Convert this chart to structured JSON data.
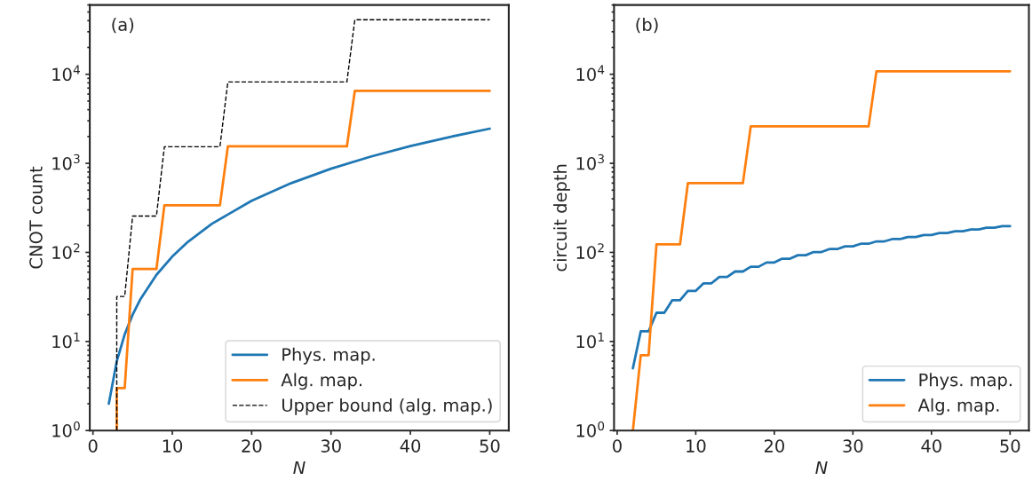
{
  "chart_data": [
    {
      "type": "line",
      "xlabel": "N",
      "ylabel": "CNOT count",
      "annotations": [
        "(a)"
      ],
      "log": "y",
      "legend": "bottom right",
      "grid": false,
      "xlim": [
        -0.4,
        52.4
      ],
      "xticks": [
        0,
        10,
        20,
        30,
        40,
        50
      ],
      "ylim": [
        1,
        60000
      ],
      "yticks": [
        {
          "value": 1,
          "label": "10$^{0}$"
        },
        {
          "value": 10,
          "label": "10$^{1}$"
        },
        {
          "value": 100,
          "label": "10$^{2}$"
        },
        {
          "value": 1000,
          "label": "10$^{3}$"
        },
        {
          "value": 10000,
          "label": "10$^{4}$"
        }
      ],
      "series": [
        {
          "name": "Phys. map.",
          "color": "#1f77b4",
          "line_style": "solid",
          "x": [
            2,
            3,
            4,
            5,
            6,
            8,
            10,
            12,
            15,
            20,
            25,
            30,
            35,
            40,
            45,
            50
          ],
          "values": [
            2,
            6,
            12,
            20,
            30,
            56,
            90,
            132,
            210,
            380,
            600,
            870,
            1190,
            1560,
            1980,
            2450
          ]
        },
        {
          "name": "Alg. map.",
          "color": "#ff7f0e",
          "line_style": "solid",
          "x": [
            3,
            3,
            4,
            5,
            8,
            9,
            16,
            17,
            32,
            33,
            50
          ],
          "values": [
            1,
            3,
            3,
            65,
            65,
            338,
            338,
            1550,
            1550,
            6500,
            6500
          ]
        },
        {
          "name": "Upper bound (alg. map.)",
          "color": "#000000",
          "line_style": "dashed",
          "x": [
            3,
            3,
            4,
            5,
            8,
            9,
            16,
            17,
            32,
            33,
            50
          ],
          "values": [
            1,
            32,
            32,
            256,
            256,
            1536,
            1536,
            8192,
            8192,
            40960,
            40960
          ]
        }
      ]
    },
    {
      "type": "line",
      "xlabel": "N",
      "ylabel": "circuit depth",
      "annotations": [
        "(b)"
      ],
      "log": "y",
      "legend": "bottom right",
      "grid": false,
      "xlim": [
        -0.4,
        52.4
      ],
      "xticks": [
        0,
        10,
        20,
        30,
        40,
        50
      ],
      "ylim": [
        1,
        60000
      ],
      "yticks": [
        {
          "value": 1,
          "label": "10$^{0}$"
        },
        {
          "value": 10,
          "label": "10$^{1}$"
        },
        {
          "value": 100,
          "label": "10$^{2}$"
        },
        {
          "value": 1000,
          "label": "10$^{3}$"
        },
        {
          "value": 10000,
          "label": "10$^{4}$"
        }
      ],
      "series": [
        {
          "name": "Phys. map.",
          "color": "#1f77b4",
          "line_style": "solid",
          "x": [
            2,
            3,
            4,
            5,
            6,
            7,
            8,
            9,
            10,
            11,
            12,
            13,
            14,
            15,
            16,
            17,
            18,
            19,
            20,
            21,
            22,
            23,
            24,
            25,
            26,
            27,
            28,
            29,
            30,
            31,
            32,
            33,
            34,
            35,
            36,
            37,
            38,
            39,
            40,
            41,
            42,
            43,
            44,
            45,
            46,
            47,
            48,
            49,
            50
          ],
          "values": [
            5,
            13,
            13,
            21,
            21,
            29,
            29,
            37,
            37,
            45,
            45,
            53,
            53,
            61,
            61,
            69,
            69,
            77,
            77,
            85,
            85,
            93,
            93,
            101,
            101,
            109,
            109,
            117,
            117,
            125,
            125,
            133,
            133,
            141,
            141,
            149,
            149,
            157,
            157,
            165,
            165,
            173,
            173,
            181,
            181,
            189,
            189,
            197,
            197
          ]
        },
        {
          "name": "Alg. map.",
          "color": "#ff7f0e",
          "line_style": "solid",
          "x": [
            2,
            3,
            4,
            5,
            8,
            9,
            16,
            17,
            32,
            33,
            50
          ],
          "values": [
            1,
            7,
            7,
            123,
            123,
            600,
            600,
            2600,
            2600,
            10800,
            10800
          ]
        }
      ]
    }
  ]
}
